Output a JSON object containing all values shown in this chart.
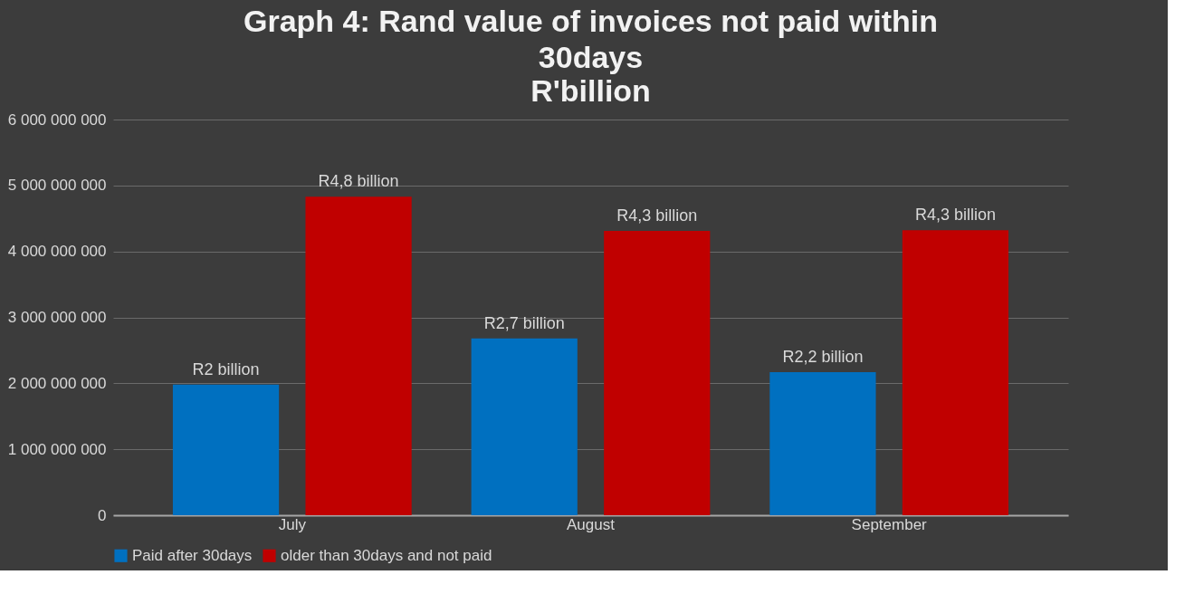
{
  "chart_data": {
    "type": "bar",
    "title": "Graph 4: Rand value of invoices not paid within 30days",
    "subtitle": "R'billion",
    "categories": [
      "July",
      "August",
      "September"
    ],
    "series": [
      {
        "name": "Paid after 30days",
        "color": "#0070c0",
        "values": [
          1980000000,
          2680000000,
          2170000000
        ],
        "value_labels": [
          "R2 billion",
          "R2,7 billion",
          "R2,2 billion"
        ]
      },
      {
        "name": "older than 30days and not paid",
        "color": "#c00000",
        "values": [
          4830000000,
          4310000000,
          4320000000
        ],
        "value_labels": [
          "R4,8 billion",
          "R4,3 billion",
          "R4,3 billion"
        ]
      }
    ],
    "ylim": [
      0,
      6000000000
    ],
    "yticks": [
      {
        "value": 0,
        "label": "0"
      },
      {
        "value": 1000000000,
        "label": "1 000 000 000"
      },
      {
        "value": 2000000000,
        "label": "2 000 000 000"
      },
      {
        "value": 3000000000,
        "label": "3 000 000 000"
      },
      {
        "value": 4000000000,
        "label": "4 000 000 000"
      },
      {
        "value": 5000000000,
        "label": "5 000 000 000"
      },
      {
        "value": 6000000000,
        "label": "6 000 000 000"
      }
    ],
    "grid": "y",
    "legend": "bottom"
  }
}
